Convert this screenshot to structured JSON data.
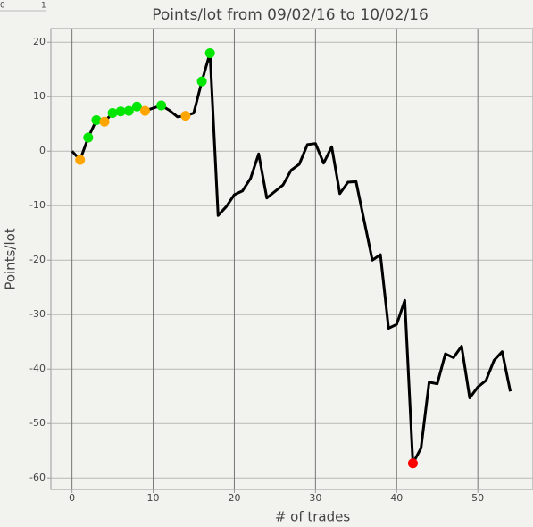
{
  "ruler": [
    "0",
    "1"
  ],
  "chart_data": {
    "type": "line",
    "title": "Points/lot from 09/02/16 to 10/02/16",
    "x_label": "# of trades",
    "y_label": "Points/lot",
    "xlim": [
      -2.6,
      56.8
    ],
    "ylim": [
      -62.1,
      22.5
    ],
    "xticks": [
      0,
      10,
      20,
      30,
      40,
      50
    ],
    "yticks": [
      -60,
      -50,
      -40,
      -30,
      -20,
      -10,
      0,
      10,
      20
    ],
    "grid": true,
    "series": [
      {
        "color": "#000000",
        "x": [
          0,
          1,
          2,
          3,
          4,
          5,
          6,
          7,
          8,
          9,
          10,
          11,
          12,
          13,
          14,
          15,
          16,
          17,
          18,
          19,
          20,
          21,
          22,
          23,
          24,
          25,
          26,
          27,
          28,
          29,
          30,
          31,
          32,
          33,
          34,
          35,
          36,
          37,
          38,
          39,
          40,
          41,
          42,
          43,
          44,
          45,
          46,
          47,
          48,
          49,
          50,
          51,
          52,
          53,
          54
        ],
        "values": [
          0,
          -1.6,
          2.5,
          5.7,
          5.4,
          7.0,
          7.3,
          7.4,
          8.2,
          7.4,
          7.9,
          8.4,
          7.5,
          6.3,
          6.5,
          7.0,
          12.8,
          18.0,
          -11.8,
          -10.2,
          -8.0,
          -7.3,
          -5.0,
          -0.5,
          -8.6,
          -7.4,
          -6.2,
          -3.5,
          -2.4,
          1.2,
          1.4,
          -2.2,
          0.8,
          -7.8,
          -5.7,
          -5.6,
          -12.8,
          -20.0,
          -19.0,
          -32.5,
          -31.8,
          -27.4,
          -57.3,
          -54.5,
          -42.4,
          -42.7,
          -37.2,
          -37.9,
          -35.8,
          -45.3,
          -43.3,
          -42.1,
          -38.4,
          -36.8,
          -44.1
        ],
        "marker_colors": [
          null,
          "#ffa500",
          "#00e600",
          "#00e600",
          "#ffa500",
          "#00e600",
          "#00e600",
          "#00e600",
          "#00e600",
          "#ffa500",
          null,
          "#00e600",
          null,
          null,
          "#ffa500",
          null,
          "#00e600",
          "#00e600",
          null,
          null,
          null,
          null,
          null,
          null,
          null,
          null,
          null,
          null,
          null,
          null,
          null,
          null,
          null,
          null,
          null,
          null,
          null,
          null,
          null,
          null,
          null,
          null,
          "#ff0000",
          null,
          null,
          null,
          null,
          null,
          null,
          null,
          null,
          null,
          null,
          null,
          null
        ]
      }
    ]
  }
}
